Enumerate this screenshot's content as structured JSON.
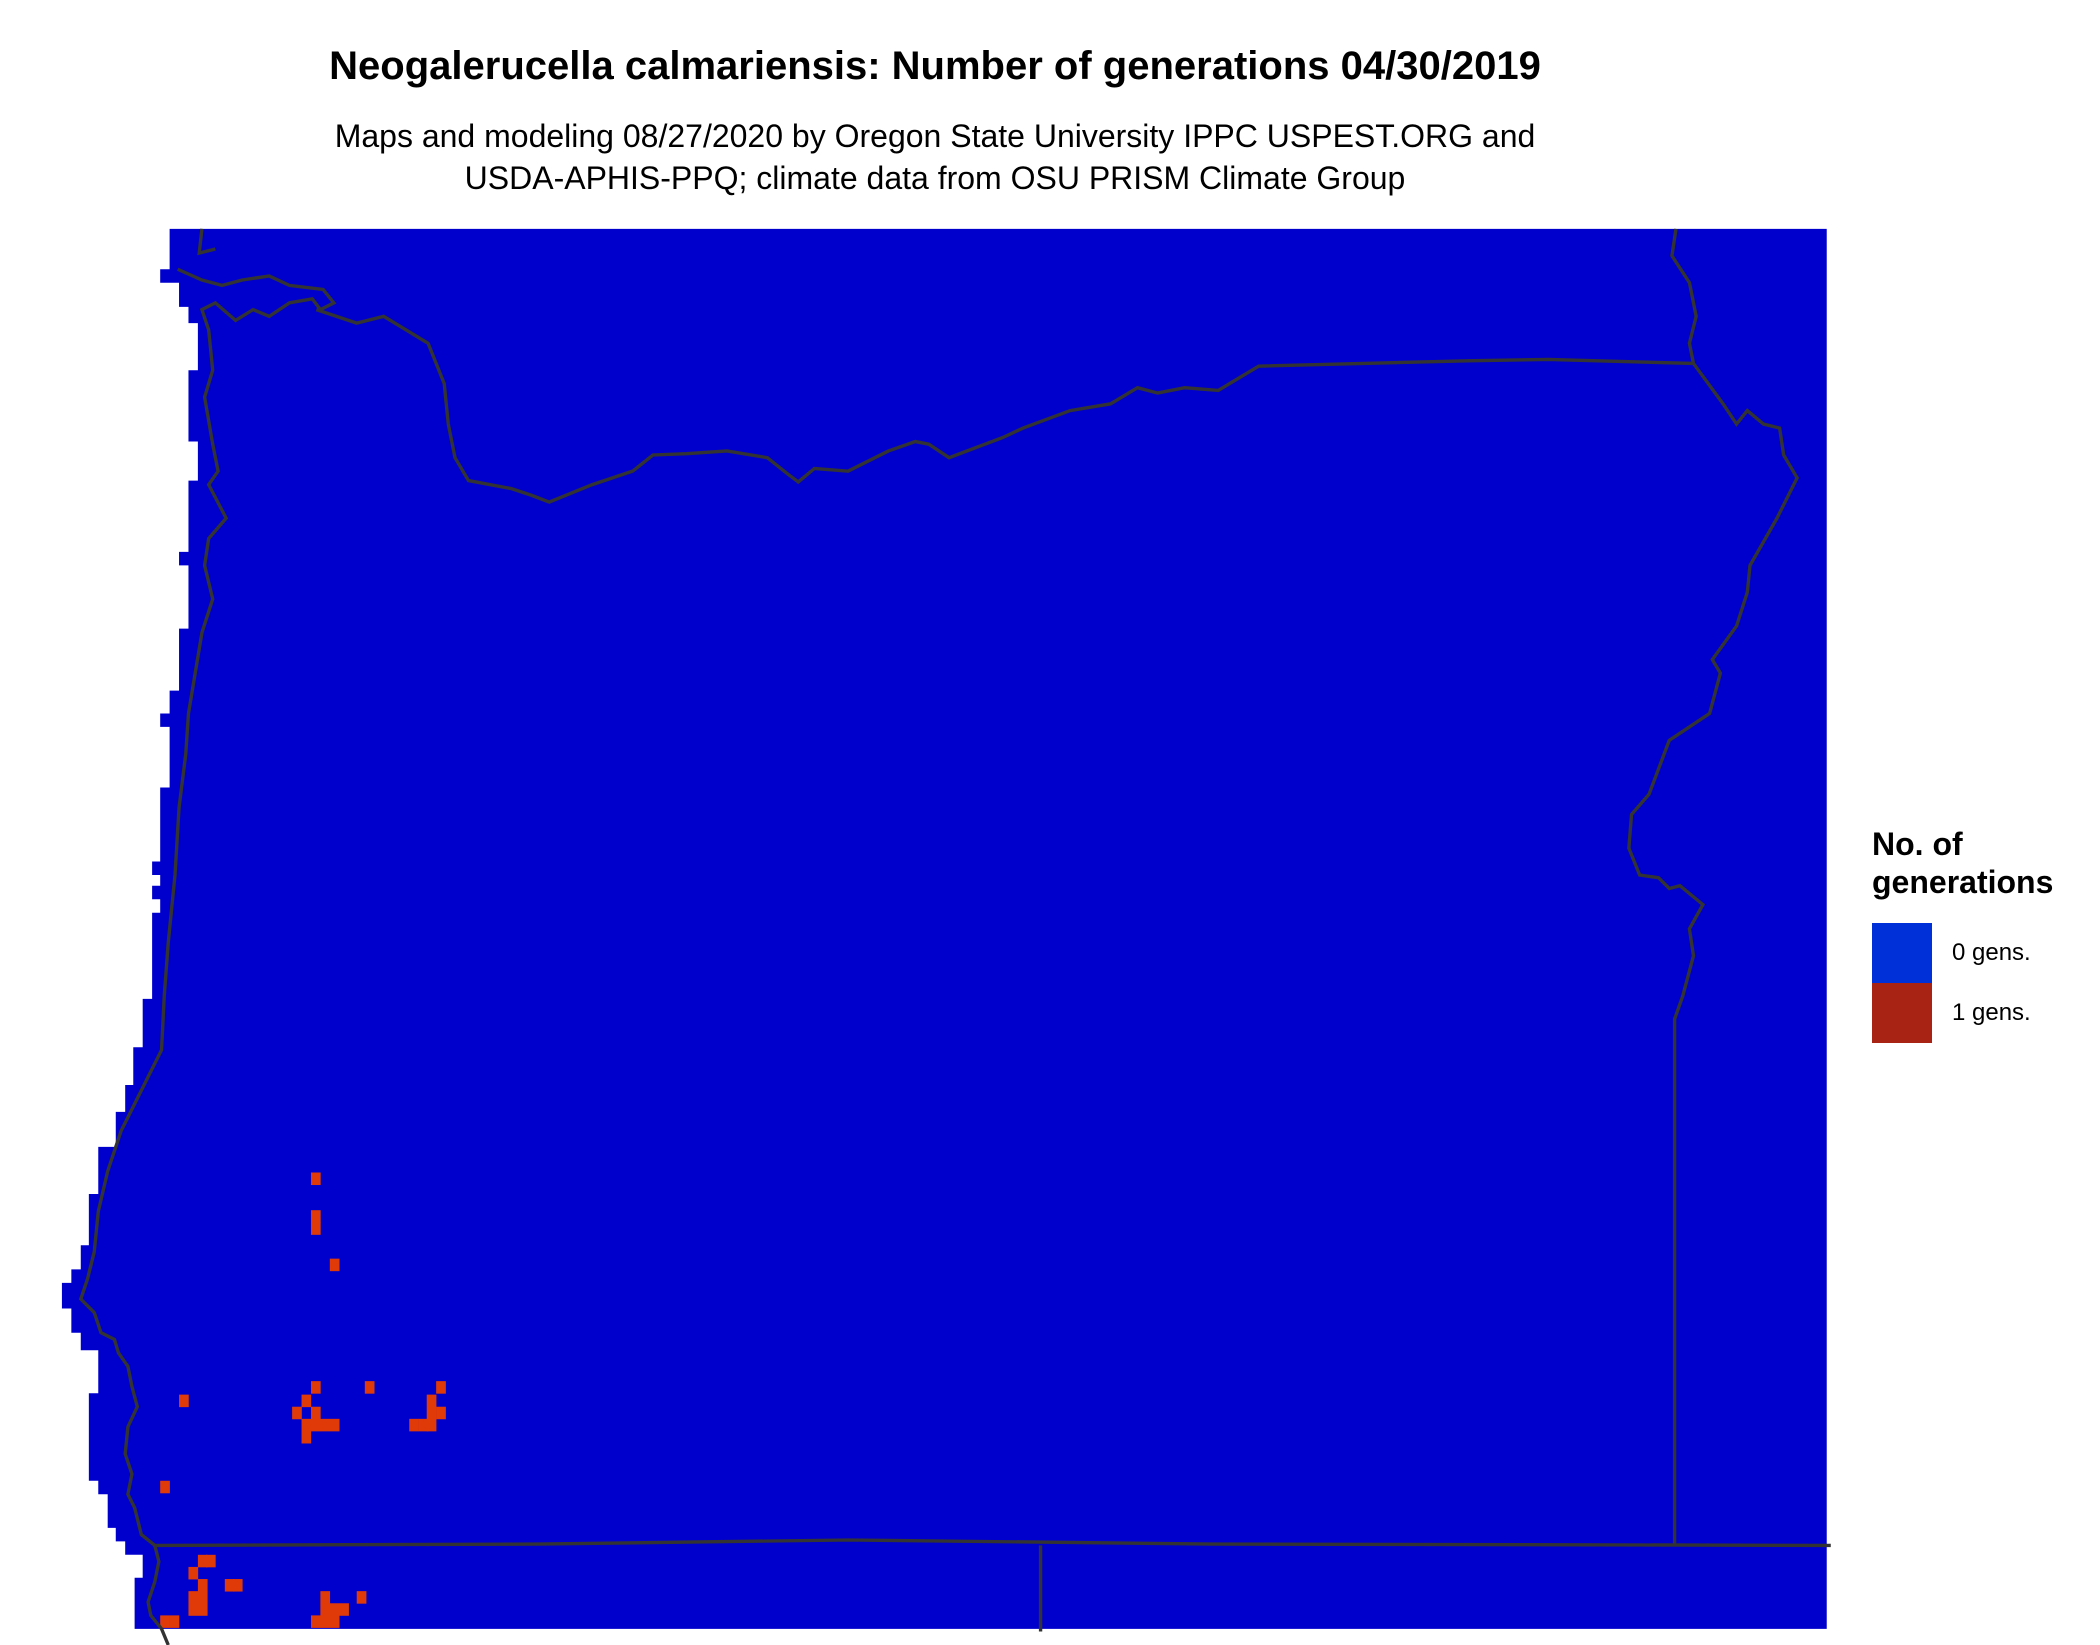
{
  "title": "Neogalerucella calmariensis: Number of generations 04/30/2019",
  "subtitle_line1": "Maps and modeling 08/27/2020 by Oregon State University IPPC USPEST.ORG and",
  "subtitle_line2": "USDA-APHIS-PPQ; climate data from OSU PRISM Climate Group",
  "legend": {
    "title": "No. of generations",
    "items": [
      {
        "label": "0 gens.",
        "color": "#0030D8"
      },
      {
        "label": "1 gens.",
        "color": "#A82314"
      }
    ]
  },
  "map_colors": {
    "zero_gens": "#0000CC",
    "one_gen": "#E03A08",
    "border": "#333333"
  }
}
